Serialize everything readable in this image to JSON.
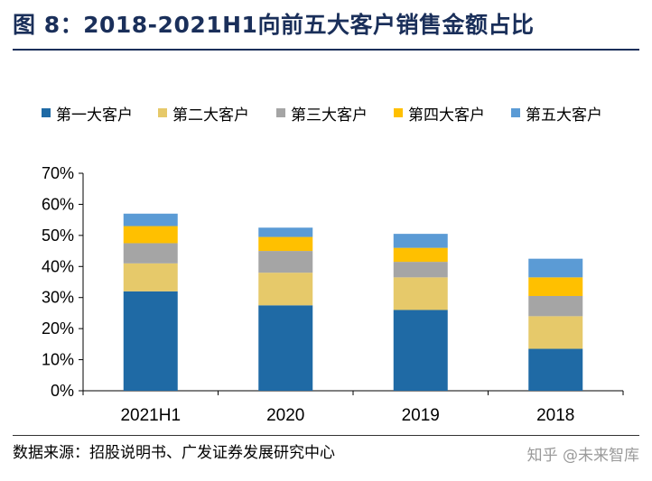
{
  "header": {
    "title": "图 8：2018-2021H1向前五大客户销售金额占比"
  },
  "footer": {
    "source": "数据来源：招股说明书、广发证券发展研究中心",
    "watermark": "知乎 @未来智库"
  },
  "chart_data": {
    "type": "bar",
    "stacked": true,
    "categories": [
      "2021H1",
      "2020",
      "2019",
      "2018"
    ],
    "series": [
      {
        "name": "第一大客户",
        "color": "#1f6aa5",
        "values": [
          32.0,
          27.5,
          26.0,
          13.5
        ]
      },
      {
        "name": "第二大客户",
        "color": "#e6c96a",
        "values": [
          9.0,
          10.5,
          10.5,
          10.5
        ]
      },
      {
        "name": "第三大客户",
        "color": "#a5a5a5",
        "values": [
          6.5,
          7.0,
          5.0,
          6.5
        ]
      },
      {
        "name": "第四大客户",
        "color": "#ffc000",
        "values": [
          5.5,
          4.5,
          4.5,
          6.0
        ]
      },
      {
        "name": "第五大客户",
        "color": "#5b9bd5",
        "values": [
          4.0,
          3.0,
          4.5,
          6.0
        ]
      }
    ],
    "ylim": [
      0,
      70
    ],
    "yticks": [
      0,
      10,
      20,
      30,
      40,
      50,
      60,
      70
    ],
    "ytick_format": "percent",
    "grid": false,
    "legend_position": "top"
  }
}
